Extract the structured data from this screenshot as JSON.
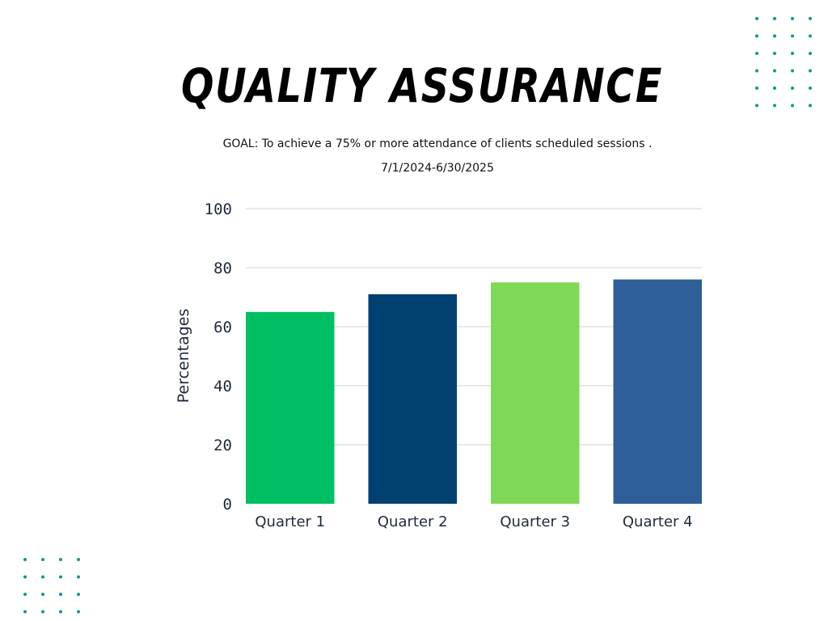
{
  "header": {
    "title": "QUALITY ASSURANCE",
    "goal": "GOAL: To achieve a 75% or more attendance of clients scheduled sessions .",
    "period": "7/1/2024-6/30/2025"
  },
  "decoration": {
    "dot_color": "#12968f"
  },
  "chart_data": {
    "type": "bar",
    "categories": [
      "Quarter 1",
      "Quarter 2",
      "Quarter 3",
      "Quarter 4"
    ],
    "values": [
      65,
      71,
      75,
      76
    ],
    "colors": [
      "#00bf63",
      "#004172",
      "#7ed957",
      "#2f5f99"
    ],
    "xlabel": "",
    "ylabel": "Percentages",
    "ylim": [
      0,
      100
    ],
    "yticks": [
      "0",
      "20",
      "40",
      "60",
      "80",
      "100"
    ],
    "grid": true,
    "legend": "none"
  }
}
